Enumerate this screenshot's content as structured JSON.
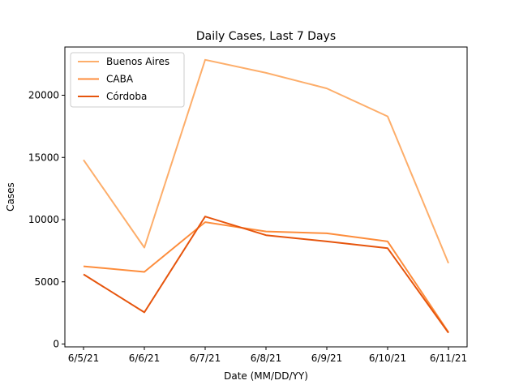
{
  "chart_data": {
    "type": "line",
    "title": "Daily Cases, Last 7 Days",
    "xlabel": "Date (MM/DD/YY)",
    "ylabel": "Cases",
    "categories": [
      "6/5/21",
      "6/6/21",
      "6/7/21",
      "6/8/21",
      "6/9/21",
      "6/10/21",
      "6/11/21"
    ],
    "ylim": [
      0,
      23500
    ],
    "yticks": [
      0,
      5000,
      10000,
      15000,
      20000
    ],
    "legend_position": "top-left",
    "grid": false,
    "series": [
      {
        "name": "Buenos Aires",
        "color": "#fdae6b",
        "values": [
          14800,
          7750,
          22850,
          21800,
          20550,
          18300,
          6500
        ]
      },
      {
        "name": "CABA",
        "color": "#fd8d3c",
        "values": [
          6250,
          5800,
          9800,
          9050,
          8900,
          8250,
          950
        ]
      },
      {
        "name": "Córdoba",
        "color": "#e6550d",
        "values": [
          5600,
          2550,
          10250,
          8750,
          8250,
          7700,
          900
        ]
      }
    ]
  }
}
